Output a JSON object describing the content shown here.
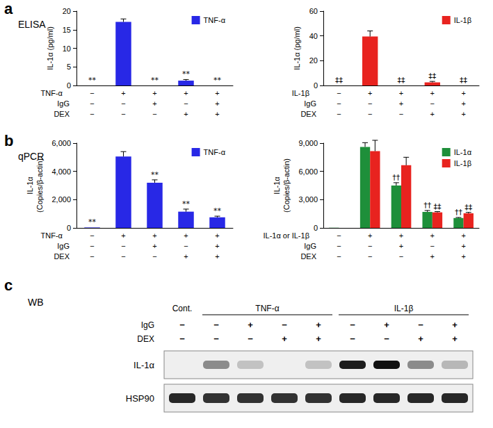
{
  "panels": [
    {
      "letter": "a",
      "method": "ELISA"
    },
    {
      "letter": "b",
      "method": "qPCR"
    },
    {
      "letter": "c",
      "method": "WB"
    }
  ],
  "chart_data": [
    {
      "type": "bar",
      "ylabel": "IL-1α (pg/ml)",
      "categories": [
        null,
        null,
        null,
        null,
        null
      ],
      "ylim": [
        0,
        20
      ],
      "yticks": [
        0,
        5,
        10,
        15,
        20
      ],
      "grid": false,
      "legend": "upper right",
      "treatments": [
        {
          "name": "TNF-α",
          "signs": [
            "−",
            "+",
            "+",
            "+",
            "+"
          ]
        },
        {
          "name": "IgG",
          "signs": [
            "−",
            "−",
            "+",
            "−",
            "+"
          ]
        },
        {
          "name": "DEX",
          "signs": [
            "−",
            "−",
            "−",
            "+",
            "+"
          ]
        }
      ],
      "series": [
        {
          "name": "TNF-α",
          "color": "#2828e6",
          "values": [
            0,
            17.1,
            0,
            1.3,
            0
          ],
          "errors": [
            null,
            0.8,
            null,
            0.3,
            null
          ],
          "annotations": [
            "**",
            null,
            "**",
            "**",
            "**"
          ]
        }
      ]
    },
    {
      "type": "bar",
      "ylabel": "IL-1α (pg/ml)",
      "categories": [
        null,
        null,
        null,
        null,
        null
      ],
      "ylim": [
        0,
        60
      ],
      "yticks": [
        0,
        20,
        40,
        60
      ],
      "grid": false,
      "legend": "upper right",
      "treatments": [
        {
          "name": "IL-1β",
          "signs": [
            "−",
            "+",
            "+",
            "+",
            "+"
          ]
        },
        {
          "name": "IgG",
          "signs": [
            "−",
            "−",
            "+",
            "−",
            "+"
          ]
        },
        {
          "name": "DEX",
          "signs": [
            "−",
            "−",
            "−",
            "+",
            "+"
          ]
        }
      ],
      "series": [
        {
          "name": "IL-1β",
          "color": "#e8231f",
          "values": [
            0,
            39.5,
            0,
            2.5,
            0
          ],
          "errors": [
            null,
            4.5,
            null,
            0.8,
            null
          ],
          "annotations": [
            "‡‡",
            null,
            "‡‡",
            "‡‡",
            "‡‡"
          ]
        }
      ]
    },
    {
      "type": "bar",
      "ylabel": "IL-1α\n(Copies/β-actin)",
      "categories": [
        null,
        null,
        null,
        null,
        null
      ],
      "ylim": [
        0,
        6000
      ],
      "yticks": [
        0,
        2000,
        4000,
        6000
      ],
      "grid": false,
      "legend": "upper right",
      "treatments": [
        {
          "name": "TNF-α",
          "signs": [
            "−",
            "+",
            "+",
            "+",
            "+"
          ]
        },
        {
          "name": "IgG",
          "signs": [
            "−",
            "−",
            "+",
            "−",
            "+"
          ]
        },
        {
          "name": "DEX",
          "signs": [
            "−",
            "−",
            "−",
            "+",
            "+"
          ]
        }
      ],
      "series": [
        {
          "name": "TNF-α",
          "color": "#2828e6",
          "values": [
            30,
            5050,
            3200,
            1150,
            750
          ],
          "errors": [
            null,
            350,
            200,
            180,
            80
          ],
          "annotations": [
            "**",
            null,
            "**",
            "**",
            "**"
          ]
        }
      ]
    },
    {
      "type": "bar",
      "ylabel": "IL-1α\n(Copies/β-actin)",
      "categories": [
        null,
        null,
        null,
        null,
        null
      ],
      "ylim": [
        0,
        9000
      ],
      "yticks": [
        0,
        3000,
        6000,
        9000
      ],
      "grid": false,
      "legend": "upper right",
      "treatments": [
        {
          "name": "IL-1α or IL-1β",
          "signs": [
            "−",
            "+",
            "+",
            "+",
            "+"
          ]
        },
        {
          "name": "IgG",
          "signs": [
            "−",
            "−",
            "+",
            "−",
            "+"
          ]
        },
        {
          "name": "DEX",
          "signs": [
            "−",
            "−",
            "−",
            "+",
            "+"
          ]
        }
      ],
      "series": [
        {
          "name": "IL-1α",
          "color": "#1e8f3a",
          "values": [
            20,
            8600,
            4500,
            1700,
            1050
          ],
          "errors": [
            null,
            450,
            300,
            150,
            60
          ],
          "annotations": [
            null,
            null,
            "††",
            "††",
            "††"
          ]
        },
        {
          "name": "IL-1β",
          "color": "#e8231f",
          "values": [
            null,
            8150,
            6650,
            1650,
            1550
          ],
          "errors": [
            null,
            1150,
            850,
            80,
            100
          ],
          "annotations": [
            null,
            null,
            null,
            "‡‡",
            "‡‡"
          ]
        }
      ]
    }
  ],
  "blot": {
    "lane_groups": [
      {
        "label": "Cont.",
        "lanes": 1
      },
      {
        "label": "TNF-α",
        "lanes": 4
      },
      {
        "label": "IL-1β",
        "lanes": 4
      }
    ],
    "rows": [
      {
        "name": "IgG",
        "signs": [
          "−",
          "−",
          "+",
          "−",
          "+",
          "−",
          "+",
          "−",
          "+"
        ]
      },
      {
        "name": "DEX",
        "signs": [
          "−",
          "−",
          "−",
          "+",
          "+",
          "−",
          "−",
          "+",
          "+"
        ]
      }
    ],
    "blots": [
      {
        "name": "IL-1α",
        "intensity": [
          0,
          0.45,
          0.2,
          0,
          0.2,
          0.95,
          1.0,
          0.45,
          0.25
        ]
      },
      {
        "name": "HSP90",
        "intensity": [
          0.9,
          0.85,
          0.85,
          0.85,
          0.85,
          0.9,
          0.9,
          0.9,
          0.9
        ]
      }
    ]
  }
}
